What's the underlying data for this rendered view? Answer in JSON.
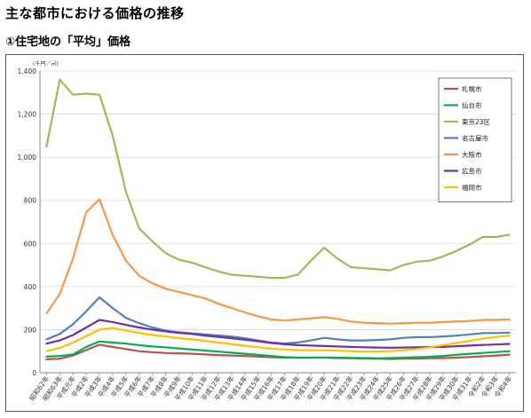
{
  "page": {
    "title": "主な都市における価格の推移",
    "section": "①住宅地の「平均」価格"
  },
  "chart_data": {
    "type": "line",
    "title": "",
    "xlabel": "",
    "ylabel": "(千円／㎡)",
    "ylim": [
      0,
      1400
    ],
    "yticks": [
      0,
      200,
      400,
      600,
      800,
      1000,
      1200,
      1400
    ],
    "ytick_labels": [
      "0",
      "200",
      "400",
      "600",
      "800",
      "1,000",
      "1,200",
      "1,400"
    ],
    "grid": true,
    "legend_position": "top-right",
    "categories": [
      "昭和62年",
      "昭和63年",
      "平成元年",
      "平成2年",
      "平成3年",
      "平成4年",
      "平成5年",
      "平成6年",
      "平成7年",
      "平成8年",
      "平成9年",
      "平成10年",
      "平成11年",
      "平成12年",
      "平成13年",
      "平成14年",
      "平成15年",
      "平成16年",
      "平成17年",
      "平成18年",
      "平成19年",
      "平成20年",
      "平成21年",
      "平成22年",
      "平成23年",
      "平成24年",
      "平成25年",
      "平成26年",
      "平成27年",
      "平成28年",
      "平成29年",
      "平成30年",
      "平成31年",
      "令和2年",
      "令和3年",
      "令和4年"
    ],
    "series": [
      {
        "name": "札幌市",
        "color": "#c0504d",
        "values": [
          62,
          65,
          80,
          105,
          130,
          120,
          110,
          100,
          95,
          92,
          90,
          88,
          85,
          82,
          80,
          78,
          75,
          72,
          70,
          70,
          70,
          70,
          68,
          67,
          66,
          65,
          64,
          65,
          66,
          67,
          68,
          70,
          73,
          76,
          80,
          84
        ]
      },
      {
        "name": "仙台市",
        "color": "#00b050",
        "values": [
          75,
          78,
          85,
          120,
          145,
          140,
          135,
          128,
          122,
          118,
          113,
          108,
          103,
          98,
          93,
          88,
          83,
          78,
          73,
          70,
          70,
          71,
          70,
          69,
          68,
          67,
          68,
          70,
          72,
          74,
          78,
          83,
          88,
          92,
          96,
          100
        ]
      },
      {
        "name": "東京23区",
        "color": "#9bbb59",
        "values": [
          1050,
          1360,
          1290,
          1295,
          1290,
          1100,
          840,
          670,
          610,
          555,
          525,
          510,
          490,
          470,
          455,
          450,
          445,
          440,
          440,
          455,
          520,
          580,
          530,
          490,
          485,
          480,
          475,
          500,
          515,
          520,
          540,
          565,
          595,
          630,
          630,
          640
        ]
      },
      {
        "name": "名古屋市",
        "color": "#4f81bd",
        "values": [
          155,
          180,
          225,
          285,
          350,
          300,
          255,
          230,
          210,
          195,
          188,
          183,
          178,
          173,
          168,
          160,
          150,
          140,
          136,
          140,
          150,
          162,
          155,
          150,
          150,
          152,
          155,
          162,
          165,
          165,
          168,
          172,
          178,
          184,
          184,
          186
        ]
      },
      {
        "name": "大阪市",
        "color": "#f79646",
        "values": [
          275,
          365,
          530,
          745,
          805,
          640,
          520,
          450,
          415,
          390,
          375,
          360,
          345,
          320,
          300,
          280,
          262,
          248,
          242,
          248,
          252,
          258,
          250,
          238,
          232,
          230,
          228,
          230,
          232,
          232,
          235,
          238,
          240,
          245,
          245,
          248
        ]
      },
      {
        "name": "広島市",
        "color": "#7030a0",
        "values": [
          135,
          150,
          175,
          210,
          245,
          235,
          222,
          210,
          200,
          192,
          185,
          180,
          172,
          166,
          160,
          153,
          146,
          138,
          132,
          128,
          126,
          124,
          122,
          120,
          118,
          117,
          116,
          117,
          118,
          119,
          120,
          123,
          126,
          129,
          131,
          134
        ]
      },
      {
        "name": "福岡市",
        "color": "#ffc000",
        "values": [
          100,
          115,
          140,
          170,
          200,
          208,
          195,
          185,
          175,
          168,
          160,
          155,
          148,
          140,
          133,
          125,
          118,
          112,
          108,
          105,
          104,
          104,
          102,
          100,
          99,
          98,
          100,
          104,
          110,
          118,
          128,
          138,
          148,
          158,
          166,
          172
        ]
      }
    ]
  }
}
